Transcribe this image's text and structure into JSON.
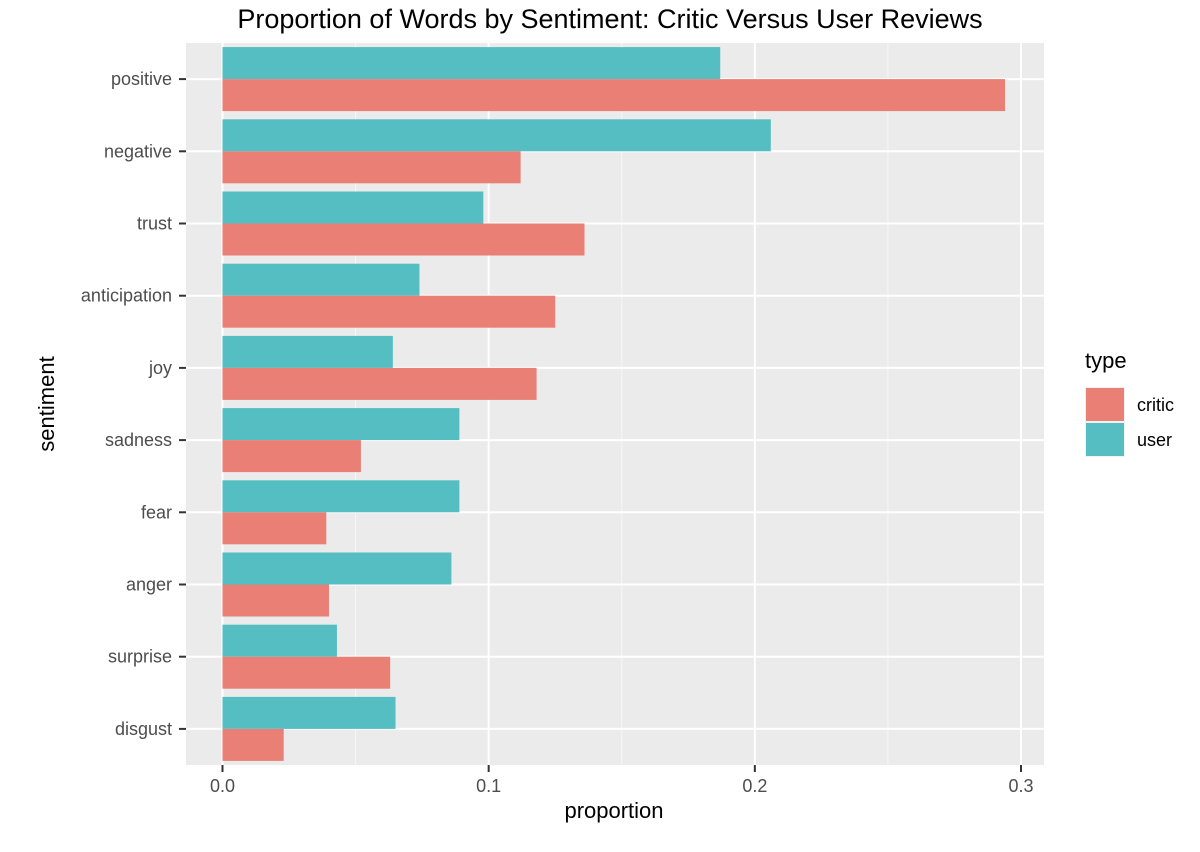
{
  "chart_data": {
    "type": "bar",
    "orientation": "horizontal",
    "title": "Proportion of Words by Sentiment: Critic Versus User Reviews",
    "xlabel": "proportion",
    "ylabel": "sentiment",
    "xlim": [
      0.0,
      0.3
    ],
    "xticks": [
      0.0,
      0.1,
      0.2,
      0.3
    ],
    "xtick_labels": [
      "0.0",
      "0.1",
      "0.2",
      "0.3"
    ],
    "grid": true,
    "legend": {
      "title": "type",
      "position": "right"
    },
    "categories": [
      "positive",
      "negative",
      "trust",
      "anticipation",
      "joy",
      "sadness",
      "fear",
      "anger",
      "surprise",
      "disgust"
    ],
    "series": [
      {
        "name": "critic",
        "color": "#E97F75",
        "values": [
          0.294,
          0.112,
          0.136,
          0.125,
          0.118,
          0.052,
          0.039,
          0.04,
          0.063,
          0.023
        ]
      },
      {
        "name": "user",
        "color": "#55BEC2",
        "values": [
          0.187,
          0.206,
          0.098,
          0.074,
          0.064,
          0.089,
          0.089,
          0.086,
          0.043,
          0.065
        ]
      }
    ]
  }
}
